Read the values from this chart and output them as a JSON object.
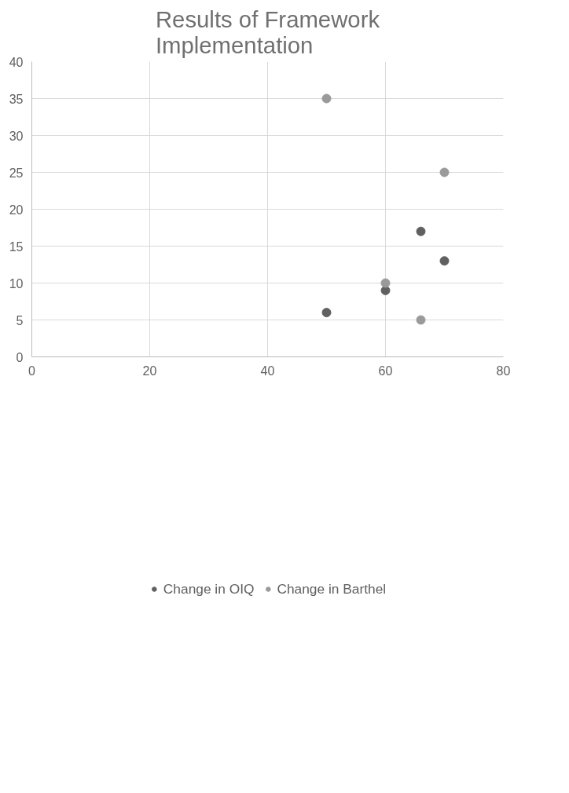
{
  "chart_data": {
    "type": "scatter",
    "title": "Results of Framework Implementation",
    "series": [
      {
        "name": "Change in OIQ",
        "color": "#606060",
        "x": [
          66,
          70,
          60,
          50
        ],
        "values": [
          17,
          13,
          9,
          6
        ]
      },
      {
        "name": "Change in Barthel",
        "color": "#9a9a9a",
        "x": [
          50,
          70,
          60,
          66
        ],
        "values": [
          35,
          25,
          10,
          5
        ]
      }
    ],
    "xlim": [
      0,
      80
    ],
    "xticks": [
      0,
      20,
      40,
      60,
      80
    ],
    "ylim": [
      0,
      40
    ],
    "yticks": [
      0,
      5,
      10,
      15,
      20,
      25,
      30,
      35,
      40
    ],
    "grid": true,
    "legend": "bottom",
    "marker": "circle"
  }
}
